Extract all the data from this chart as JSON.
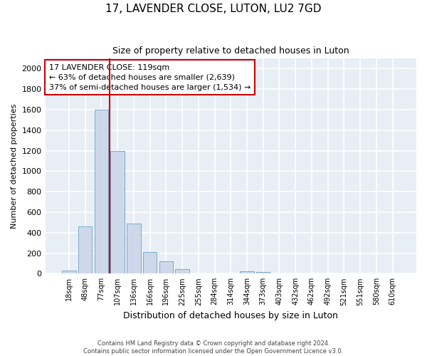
{
  "title": "17, LAVENDER CLOSE, LUTON, LU2 7GD",
  "subtitle": "Size of property relative to detached houses in Luton",
  "xlabel": "Distribution of detached houses by size in Luton",
  "ylabel": "Number of detached properties",
  "categories": [
    "18sqm",
    "48sqm",
    "77sqm",
    "107sqm",
    "136sqm",
    "166sqm",
    "196sqm",
    "225sqm",
    "255sqm",
    "284sqm",
    "314sqm",
    "344sqm",
    "373sqm",
    "403sqm",
    "432sqm",
    "462sqm",
    "492sqm",
    "521sqm",
    "551sqm",
    "580sqm",
    "610sqm"
  ],
  "values": [
    30,
    460,
    1600,
    1200,
    490,
    210,
    120,
    45,
    0,
    0,
    0,
    20,
    15,
    0,
    0,
    0,
    0,
    0,
    0,
    0,
    0
  ],
  "bar_color": "#cdd9ea",
  "bar_edge_color": "#7aaad0",
  "fig_bg_color": "#ffffff",
  "ax_bg_color": "#e8eef5",
  "grid_color": "#ffffff",
  "vline_color": "#cc0000",
  "vline_x": 2.5,
  "annotation_line1": "17 LAVENDER CLOSE: 119sqm",
  "annotation_line2": "← 63% of detached houses are smaller (2,639)",
  "annotation_line3": "37% of semi-detached houses are larger (1,534) →",
  "annotation_box_color": "#ffffff",
  "annotation_box_edge": "#cc0000",
  "footer": "Contains HM Land Registry data © Crown copyright and database right 2024.\nContains public sector information licensed under the Open Government Licence v3.0.",
  "ylim": [
    0,
    2100
  ],
  "yticks": [
    0,
    200,
    400,
    600,
    800,
    1000,
    1200,
    1400,
    1600,
    1800,
    2000
  ]
}
